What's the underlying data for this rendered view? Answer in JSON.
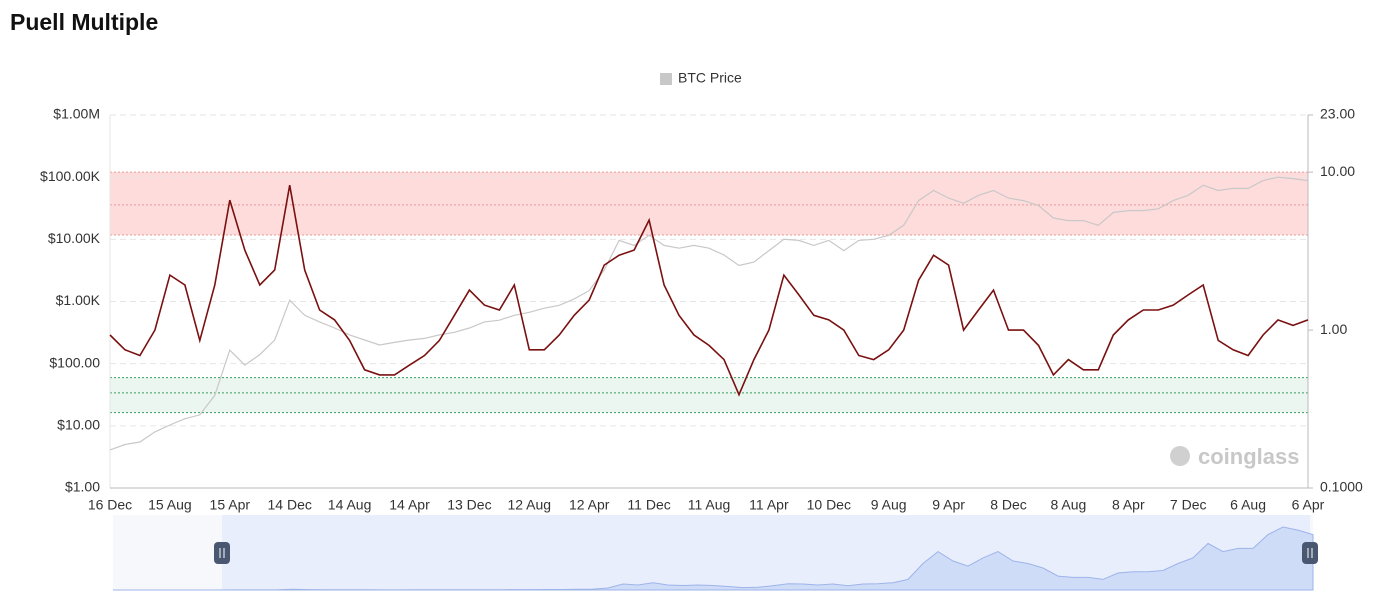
{
  "chart_data": {
    "type": "line",
    "title": "Puell Multiple",
    "watermark": "coinglass",
    "categories": [
      "16 Dec",
      null,
      null,
      null,
      "15 Aug",
      null,
      null,
      null,
      "15 Apr",
      null,
      null,
      null,
      "14 Dec",
      null,
      null,
      null,
      "14 Aug",
      null,
      null,
      null,
      "14 Apr",
      null,
      null,
      null,
      "13 Dec",
      null,
      null,
      null,
      "12 Aug",
      null,
      null,
      null,
      "12 Apr",
      null,
      null,
      null,
      "11 Dec",
      null,
      null,
      null,
      "11 Aug",
      null,
      null,
      null,
      "11 Apr",
      null,
      null,
      null,
      "10 Dec",
      null,
      null,
      null,
      "9 Aug",
      null,
      null,
      null,
      "9 Apr",
      null,
      null,
      null,
      "8 Dec",
      null,
      null,
      null,
      "8 Aug",
      null,
      null,
      null,
      "8 Apr",
      null,
      null,
      null,
      "7 Dec",
      null,
      null,
      null,
      "6 Aug",
      null,
      null,
      null,
      "6 Apr"
    ],
    "series": [
      {
        "name": "BTC Price",
        "color": "#c8c8c8",
        "axis": "y",
        "values": [
          4.1,
          5,
          5.5,
          8,
          10.3,
          13,
          15,
          31,
          165,
          95,
          140,
          240,
          1050,
          600,
          470,
          375,
          290,
          240,
          200,
          220,
          240,
          255,
          290,
          320,
          375,
          470,
          500,
          600,
          670,
          780,
          870,
          1100,
          1500,
          3200,
          9600,
          8000,
          11600,
          8000,
          7200,
          8000,
          7200,
          5600,
          3800,
          4300,
          6600,
          10000,
          9600,
          8000,
          9600,
          6600,
          9600,
          10000,
          11600,
          16800,
          42000,
          61000,
          46000,
          38000,
          51000,
          61000,
          46000,
          42000,
          35000,
          22000,
          20000,
          20000,
          16800,
          27000,
          29000,
          29000,
          31000,
          42000,
          51000,
          74000,
          61000,
          66000,
          66000,
          88000,
          100000,
          95000,
          88000
        ]
      },
      {
        "color": "#7a1010",
        "axis": "y2",
        "values": [
          0.93,
          0.75,
          0.69,
          1.0,
          2.23,
          1.93,
          0.86,
          1.93,
          6.65,
          3.21,
          1.93,
          2.4,
          8.27,
          2.4,
          1.34,
          1.16,
          0.86,
          0.56,
          0.52,
          0.52,
          0.6,
          0.69,
          0.86,
          1.24,
          1.79,
          1.44,
          1.34,
          1.93,
          0.75,
          0.75,
          0.93,
          1.24,
          1.55,
          2.58,
          2.98,
          3.21,
          4.97,
          1.93,
          1.24,
          0.93,
          0.8,
          0.65,
          0.39,
          0.65,
          1.0,
          2.23,
          1.67,
          1.24,
          1.16,
          1.0,
          0.69,
          0.65,
          0.75,
          1.0,
          2.07,
          2.98,
          2.58,
          1.0,
          1.34,
          1.79,
          1.0,
          1.0,
          0.8,
          0.52,
          0.65,
          0.56,
          0.56,
          0.93,
          1.16,
          1.34,
          1.34,
          1.44,
          1.67,
          1.93,
          0.86,
          0.75,
          0.69,
          0.93,
          1.16,
          1.07,
          1.16
        ]
      }
    ],
    "bands": [
      {
        "from": 4,
        "mid": 6.2,
        "to": 10,
        "color": "#ffdcdc",
        "line": "#e89a9a"
      },
      {
        "from": 0.3,
        "mid": 0.4,
        "to": 0.5,
        "color": "#eaf6ef",
        "line": "#3c9a5f"
      }
    ],
    "log": true,
    "grid": true,
    "legend": "top",
    "ylim": [
      1,
      1000000
    ],
    "yticks": [
      {
        "value": 1,
        "label": "$1.00"
      },
      {
        "value": 10,
        "label": "$10.00"
      },
      {
        "value": 100,
        "label": "$100.00"
      },
      {
        "value": 1000,
        "label": "$1.00K"
      },
      {
        "value": 10000,
        "label": "$10.00K"
      },
      {
        "value": 100000,
        "label": "$100.00K"
      },
      {
        "value": 1000000,
        "label": "$1.00M"
      }
    ],
    "y2lim": [
      0.1,
      23
    ],
    "y2ticks": [
      {
        "value": 0.1,
        "label": "0.1000"
      },
      {
        "value": 1,
        "label": "1.00"
      },
      {
        "value": 10,
        "label": "10.00"
      },
      {
        "value": 23,
        "label": "23.00"
      }
    ]
  }
}
